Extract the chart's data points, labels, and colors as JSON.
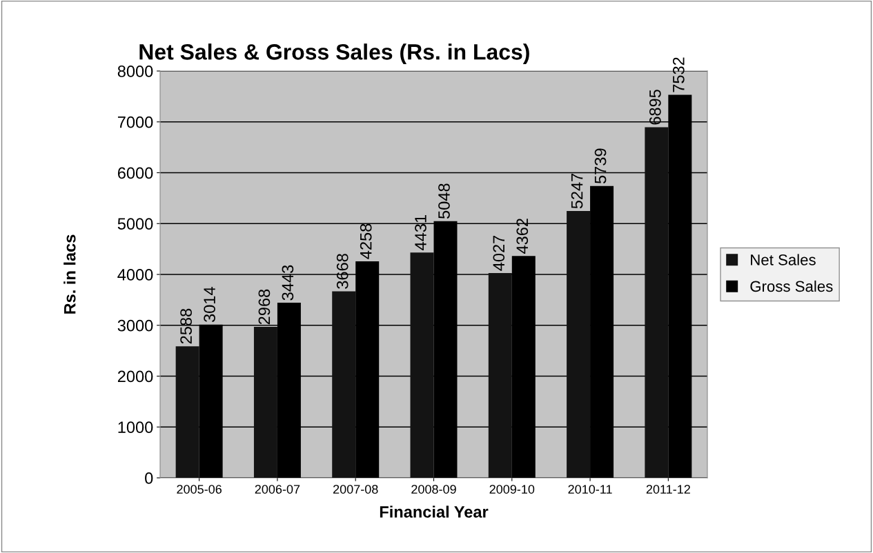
{
  "chart_data": {
    "type": "bar",
    "title": "Net Sales & Gross Sales (Rs. in Lacs)",
    "xlabel": "Financial Year",
    "ylabel": "Rs. in lacs",
    "categories": [
      "2005-06",
      "2006-07",
      "2007-08",
      "2008-09",
      "2009-10",
      "2010-11",
      "2011-12"
    ],
    "series": [
      {
        "name": "Net Sales",
        "color": "#141414",
        "values": [
          2588,
          2968,
          3668,
          4431,
          4027,
          5247,
          6895
        ]
      },
      {
        "name": "Gross Sales",
        "color": "#000000",
        "values": [
          3014,
          3443,
          4258,
          5048,
          4362,
          5739,
          7532
        ]
      }
    ],
    "ylim": [
      0,
      8000
    ],
    "yticks": [
      0,
      1000,
      2000,
      3000,
      4000,
      5000,
      6000,
      7000,
      8000
    ],
    "grid": "y",
    "legend": "right",
    "data_labels": true
  }
}
